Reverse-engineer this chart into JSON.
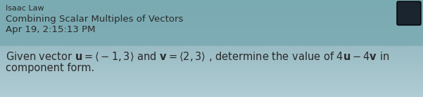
{
  "background_color_top": "#8ab8c0",
  "background_color_bottom": "#a8c8d0",
  "header_bg_top": "#7aaab2",
  "header_bg_bottom": "#8ab8c0",
  "name": "Isaac Law",
  "subtitle": "Combining Scalar Multiples of Vectors",
  "date": "Apr 19, 2:15:13 PM",
  "text_color": "#2a2a2a",
  "header_text_color": "#2a2a2a",
  "divider_color": "#6090a0",
  "name_fontsize": 8.0,
  "subtitle_fontsize": 9.5,
  "date_fontsize": 9.5,
  "question_fontsize": 10.5,
  "fig_width": 6.01,
  "fig_height": 1.39,
  "avatar_color": "#1a2530"
}
